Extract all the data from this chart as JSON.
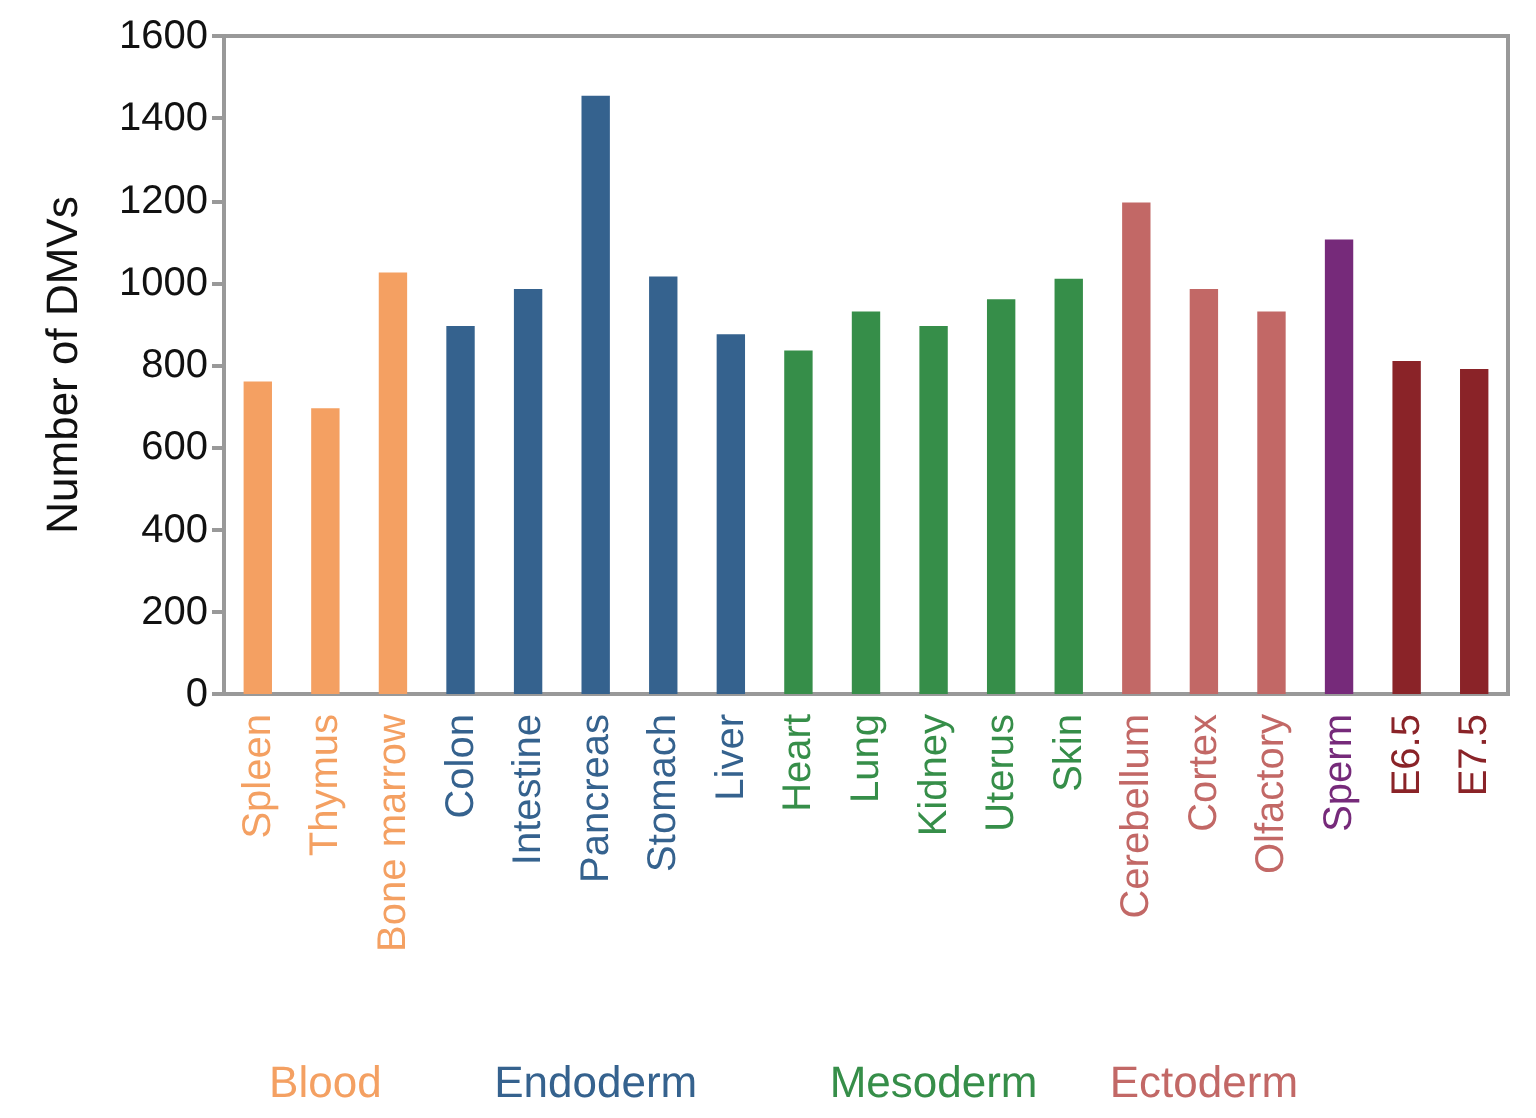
{
  "chart_data": {
    "type": "bar",
    "ylabel": "Number of DMVs",
    "categories": [
      "Spleen",
      "Thymus",
      "Bone marrow",
      "Colon",
      "Intestine",
      "Pancreas",
      "Stomach",
      "Liver",
      "Heart",
      "Lung",
      "Kidney",
      "Uterus",
      "Skin",
      "Cerebellum",
      "Cortex",
      "Olfactory",
      "Sperm",
      "E6.5",
      "E7.5"
    ],
    "values": [
      760,
      695,
      1025,
      895,
      985,
      1455,
      1015,
      875,
      835,
      930,
      895,
      960,
      1010,
      1195,
      985,
      930,
      1105,
      810,
      790
    ],
    "colors": [
      "#f4a062",
      "#f4a062",
      "#f4a062",
      "#35628e",
      "#35628e",
      "#35628e",
      "#35628e",
      "#35628e",
      "#368e49",
      "#368e49",
      "#368e49",
      "#368e49",
      "#368e49",
      "#c26866",
      "#c26866",
      "#c26866",
      "#762a7a",
      "#8a2328",
      "#8a2328"
    ],
    "ylim": [
      0,
      1600
    ],
    "yticks": [
      0,
      200,
      400,
      600,
      800,
      1000,
      1200,
      1400,
      1600
    ],
    "grid": false,
    "annotations": [
      "Blood",
      "Endoderm",
      "Mesoderm",
      "Ectoderm"
    ]
  }
}
